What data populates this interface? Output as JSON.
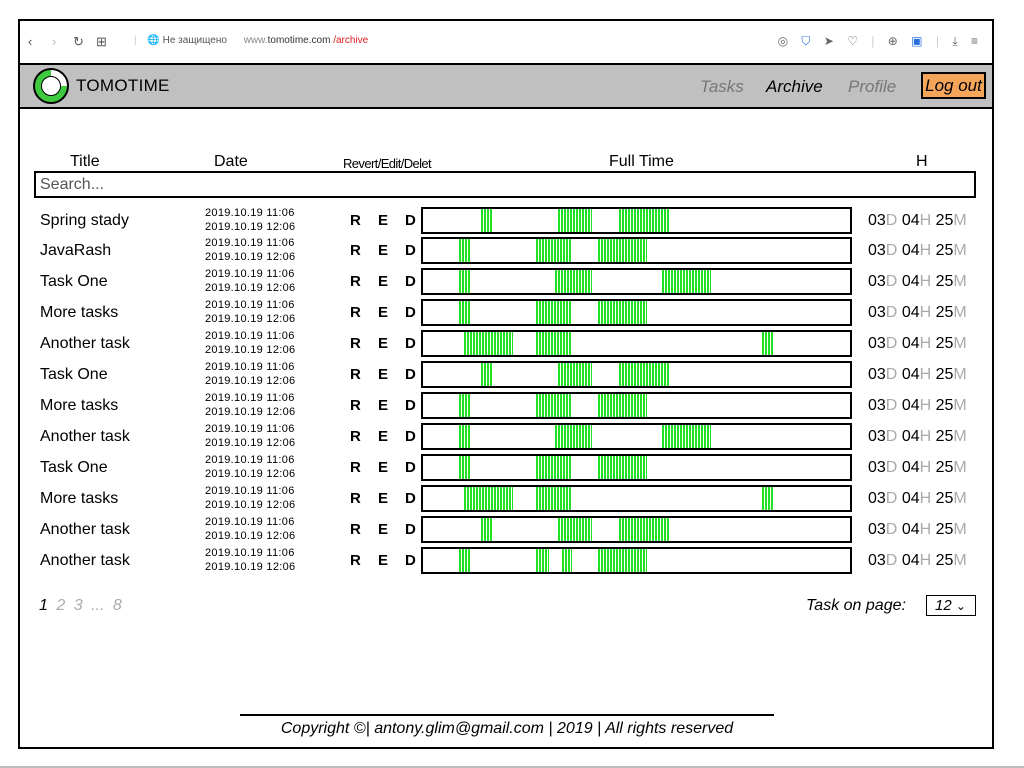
{
  "browser": {
    "insecure_label": "Не защищено",
    "host_prefix": "www.",
    "host": "tomotime.com",
    "path": "/archive",
    "back_icon": "‹",
    "forward_icon": "›",
    "reload_icon": "↻",
    "apps_icon": "⊞",
    "globe_icon": "🌐",
    "camera_icon": "◎",
    "shield_icon": "⛉",
    "send_icon": "➤",
    "heart_icon": "♡",
    "world_icon": "⊕",
    "translate_icon": "▣",
    "download_icon": "⤓",
    "menu_icon": "≡"
  },
  "app": {
    "brand": "TOMOTIME",
    "nav": {
      "tasks": "Tasks",
      "archive": "Archive",
      "profile": "Profile"
    },
    "logout": "Log out",
    "colors": {
      "appbar": "#c0c0c0",
      "logout": "#f4a55a",
      "segment": "#22e022",
      "url_path": "#e02020"
    }
  },
  "table": {
    "headers": {
      "title": "Title",
      "date": "Date",
      "actions": "Revert/Edit/Delet",
      "full_time": "Full Time",
      "h": "H"
    },
    "search_placeholder": "Search...",
    "action_labels": {
      "r": "R",
      "e": "E",
      "d": "D"
    },
    "units": {
      "d": "D",
      "h": "H",
      "m": "M"
    },
    "rows": [
      {
        "title": "Spring stady",
        "start": "2019.10.19 11:06",
        "end": "2019.10.19 12:06",
        "days": "03",
        "hours": "04",
        "minutes": "25",
        "segments": [
          [
            0.135,
            0.03
          ],
          [
            0.315,
            0.08
          ],
          [
            0.46,
            0.115
          ]
        ]
      },
      {
        "title": "JavaRash",
        "start": "2019.10.19 11:06",
        "end": "2019.10.19 12:06",
        "days": "03",
        "hours": "04",
        "minutes": "25",
        "segments": [
          [
            0.085,
            0.025
          ],
          [
            0.265,
            0.085
          ],
          [
            0.41,
            0.115
          ]
        ]
      },
      {
        "title": "Task One",
        "start": "2019.10.19 11:06",
        "end": "2019.10.19 12:06",
        "days": "03",
        "hours": "04",
        "minutes": "25",
        "segments": [
          [
            0.085,
            0.025
          ],
          [
            0.31,
            0.085
          ],
          [
            0.56,
            0.115
          ]
        ]
      },
      {
        "title": "More tasks",
        "start": "2019.10.19 11:06",
        "end": "2019.10.19 12:06",
        "days": "03",
        "hours": "04",
        "minutes": "25",
        "segments": [
          [
            0.085,
            0.025
          ],
          [
            0.265,
            0.085
          ],
          [
            0.41,
            0.115
          ]
        ]
      },
      {
        "title": "Another task",
        "start": "2019.10.19 11:06",
        "end": "2019.10.19 12:06",
        "days": "03",
        "hours": "04",
        "minutes": "25",
        "segments": [
          [
            0.095,
            0.115
          ],
          [
            0.265,
            0.085
          ],
          [
            0.795,
            0.025
          ]
        ]
      },
      {
        "title": "Task One",
        "start": "2019.10.19 11:06",
        "end": "2019.10.19 12:06",
        "days": "03",
        "hours": "04",
        "minutes": "25",
        "segments": [
          [
            0.135,
            0.03
          ],
          [
            0.315,
            0.08
          ],
          [
            0.46,
            0.115
          ]
        ]
      },
      {
        "title": "More tasks",
        "start": "2019.10.19 11:06",
        "end": "2019.10.19 12:06",
        "days": "03",
        "hours": "04",
        "minutes": "25",
        "segments": [
          [
            0.085,
            0.025
          ],
          [
            0.265,
            0.085
          ],
          [
            0.41,
            0.115
          ]
        ]
      },
      {
        "title": "Another task",
        "start": "2019.10.19 11:06",
        "end": "2019.10.19 12:06",
        "days": "03",
        "hours": "04",
        "minutes": "25",
        "segments": [
          [
            0.085,
            0.025
          ],
          [
            0.31,
            0.085
          ],
          [
            0.56,
            0.115
          ]
        ]
      },
      {
        "title": "Task One",
        "start": "2019.10.19 11:06",
        "end": "2019.10.19 12:06",
        "days": "03",
        "hours": "04",
        "minutes": "25",
        "segments": [
          [
            0.085,
            0.025
          ],
          [
            0.265,
            0.085
          ],
          [
            0.41,
            0.115
          ]
        ]
      },
      {
        "title": "More tasks",
        "start": "2019.10.19 11:06",
        "end": "2019.10.19 12:06",
        "days": "03",
        "hours": "04",
        "minutes": "25",
        "segments": [
          [
            0.095,
            0.115
          ],
          [
            0.265,
            0.085
          ],
          [
            0.795,
            0.025
          ]
        ]
      },
      {
        "title": "Another task",
        "start": "2019.10.19 11:06",
        "end": "2019.10.19 12:06",
        "days": "03",
        "hours": "04",
        "minutes": "25",
        "segments": [
          [
            0.135,
            0.03
          ],
          [
            0.315,
            0.08
          ],
          [
            0.46,
            0.115
          ]
        ]
      },
      {
        "title": "Another task",
        "start": "2019.10.19 11:06",
        "end": "2019.10.19 12:06",
        "days": "03",
        "hours": "04",
        "minutes": "25",
        "segments": [
          [
            0.085,
            0.025
          ],
          [
            0.265,
            0.03
          ],
          [
            0.325,
            0.025
          ],
          [
            0.41,
            0.115
          ]
        ]
      }
    ]
  },
  "pagination": {
    "current": "1",
    "pages": [
      "2",
      "3",
      "...",
      "8"
    ]
  },
  "per_page": {
    "label": "Task on page:",
    "value": "12",
    "chevron_icon": "⌄"
  },
  "footer": {
    "text": "Copyright ©| antony.glim@gmail.com | 2019 | All rights reserved"
  }
}
